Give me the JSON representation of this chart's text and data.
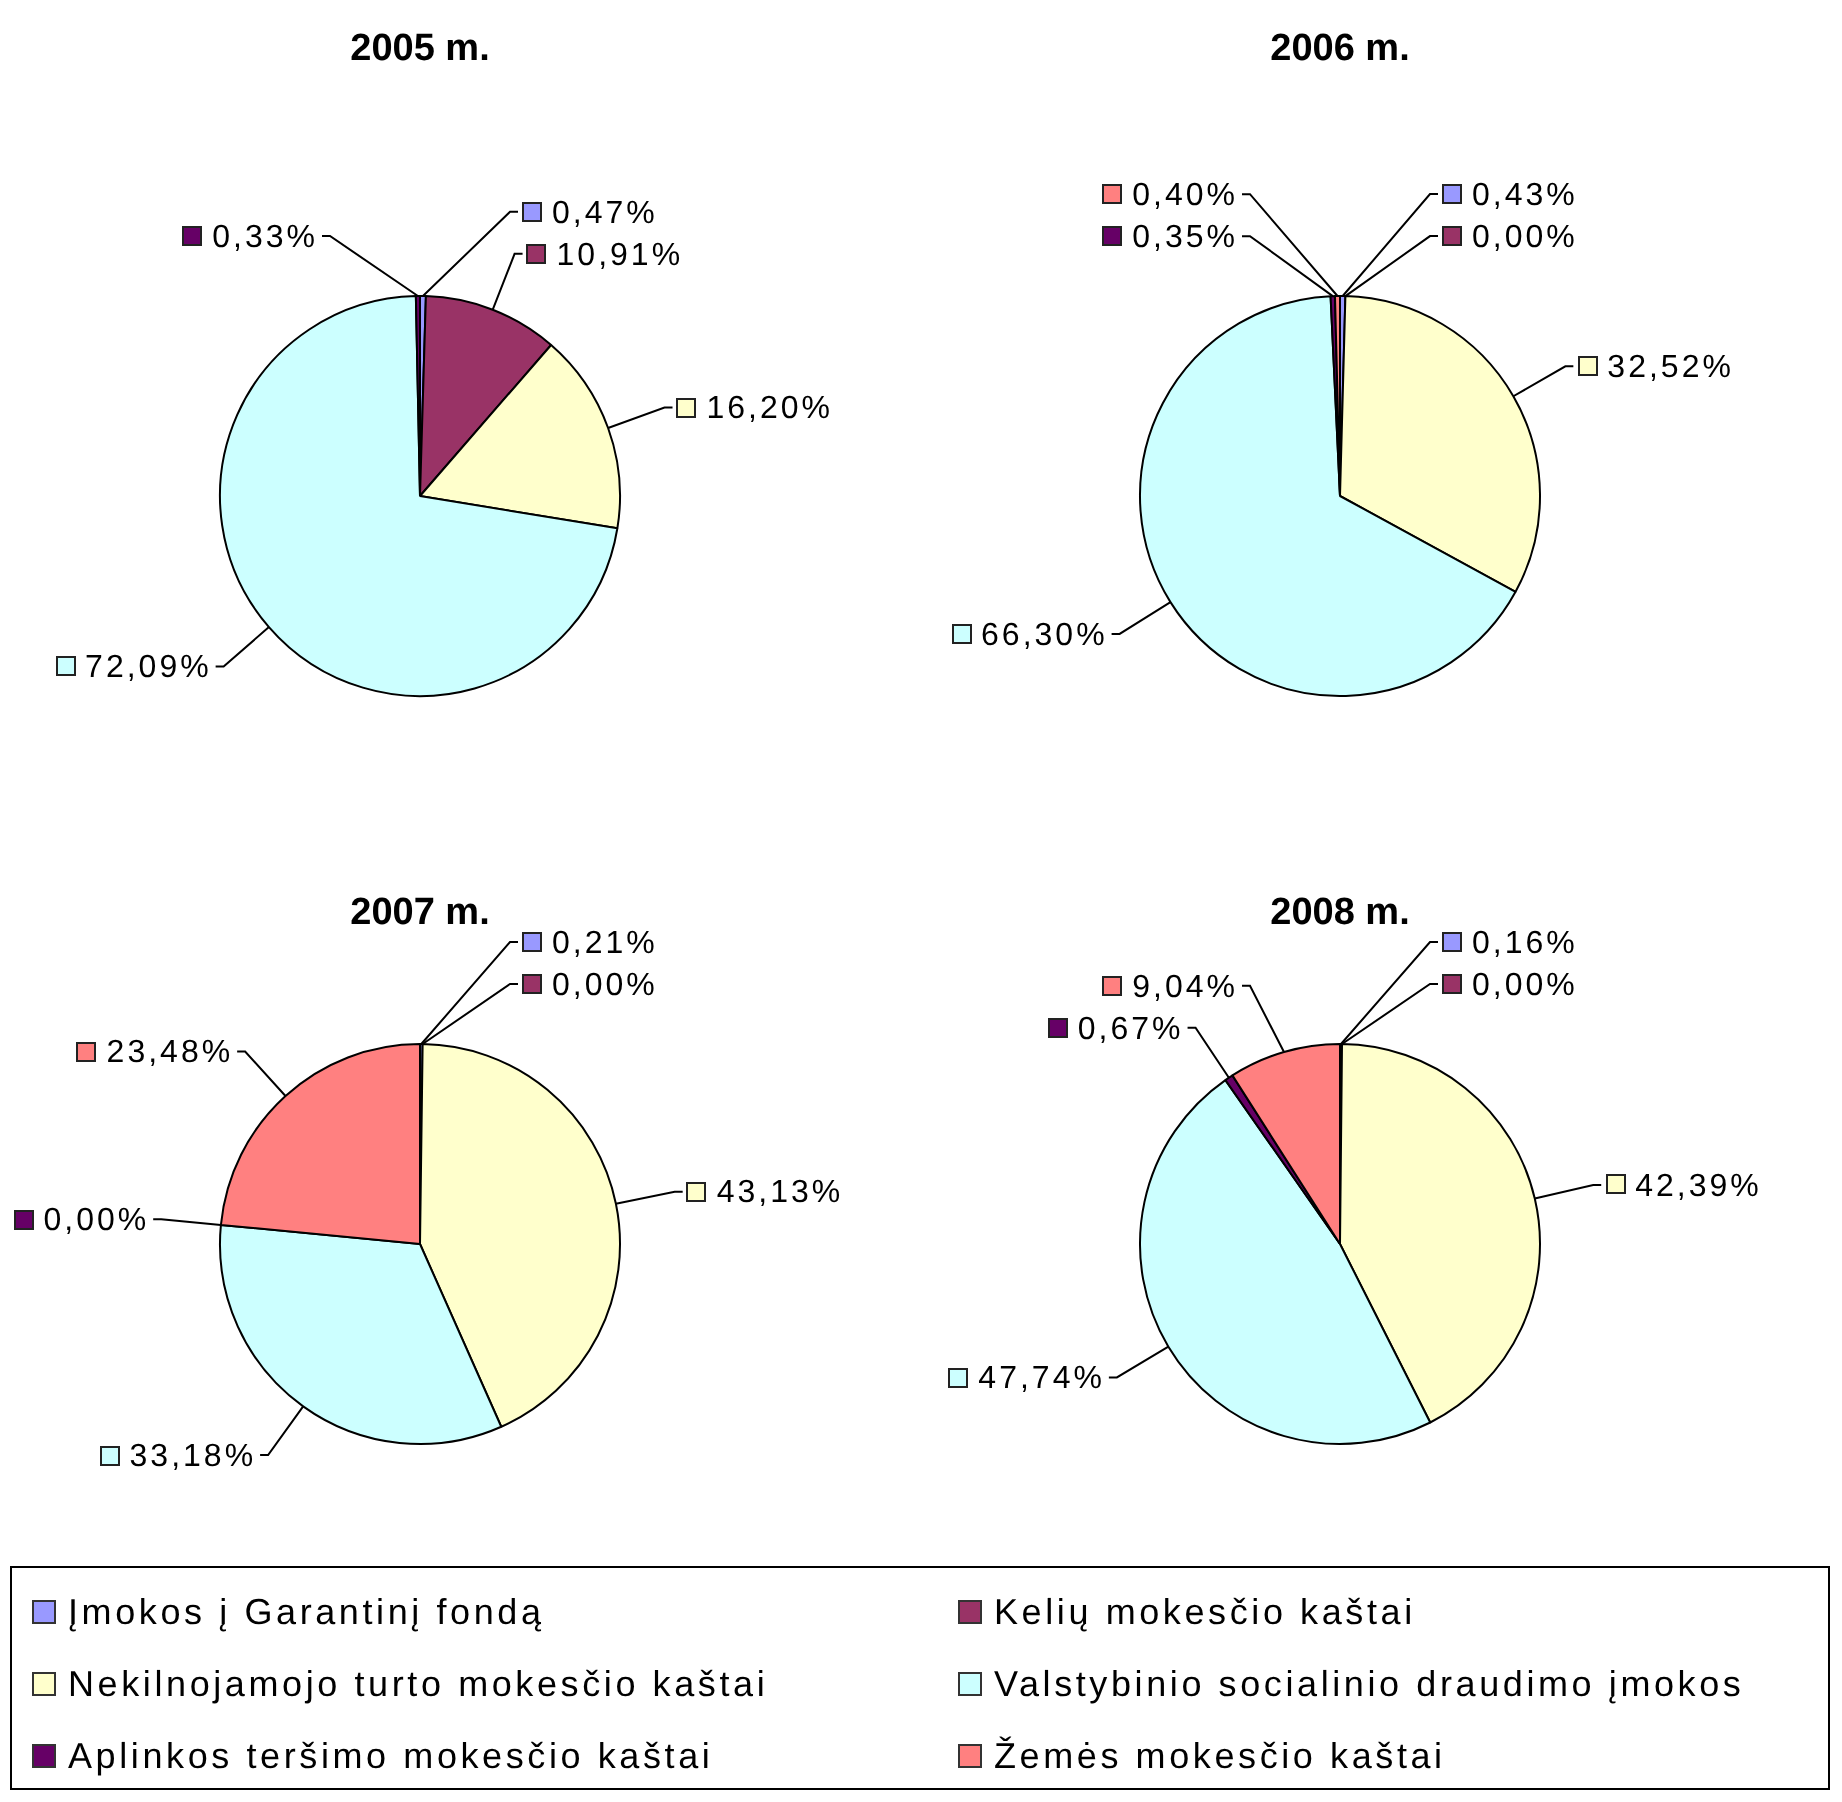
{
  "chart_data": {
    "type": "pie",
    "categories": [
      "Įmokos į Garantinį fondą",
      "Kelių mokesčio kaštai",
      "Nekilnojamojo turto mokesčio kaštai",
      "Valstybinio socialinio draudimo įmokos",
      "Aplinkos teršimo mokesčio kaštai",
      "Žemės mokesčio kaštai"
    ],
    "colors": [
      "#9999ff",
      "#993366",
      "#ffffcc",
      "#ccffff",
      "#660066",
      "#ff8080"
    ],
    "legend": "bottom",
    "series": [
      {
        "name": "2005 m.",
        "values": [
          0.47,
          10.91,
          16.2,
          72.09,
          0.33,
          null
        ],
        "value_labels": [
          "0,47%",
          "10,91%",
          "16,20%",
          "72,09%",
          "0,33%",
          null
        ]
      },
      {
        "name": "2006 m.",
        "values": [
          0.43,
          0,
          32.52,
          66.3,
          0.35,
          0.4
        ],
        "value_labels": [
          "0,43%",
          "0,00%",
          "32,52%",
          "66,30%",
          "0,35%",
          "0,40%"
        ]
      },
      {
        "name": "2007 m.",
        "values": [
          0.21,
          0,
          43.13,
          33.18,
          0,
          23.48
        ],
        "value_labels": [
          "0,21%",
          "0,00%",
          "43,13%",
          "33,18%",
          "0,00%",
          "23,48%"
        ]
      },
      {
        "name": "2008 m.",
        "values": [
          0.16,
          0,
          42.39,
          47.74,
          0.67,
          9.04
        ],
        "value_labels": [
          "0,16%",
          "0,00%",
          "42,39%",
          "47,74%",
          "0,67%",
          "9,04%"
        ]
      }
    ]
  }
}
